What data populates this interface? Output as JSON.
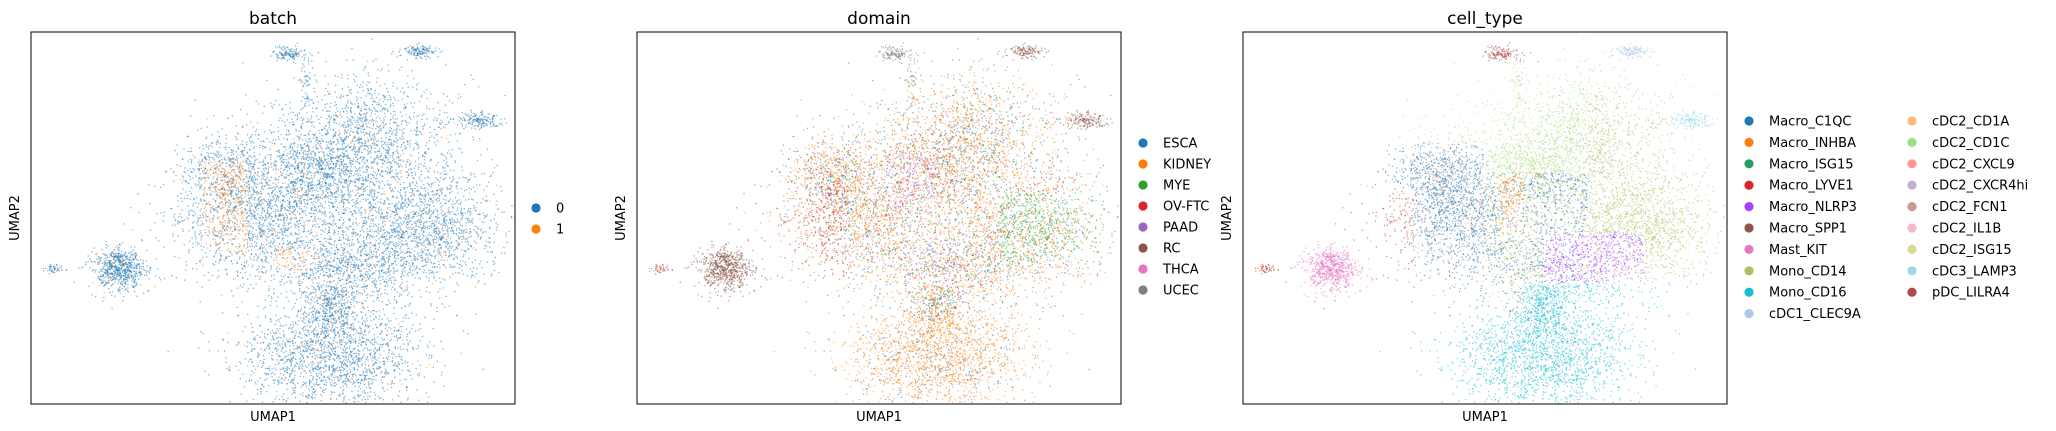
{
  "chart_data": [
    {
      "type": "scatter",
      "title": "batch",
      "xlabel": "UMAP1",
      "ylabel": "UMAP2",
      "legend": "right",
      "grid": false,
      "series": [
        {
          "name": "0",
          "color": "#1f77b4"
        },
        {
          "name": "1",
          "color": "#ff7f0e"
        }
      ]
    },
    {
      "type": "scatter",
      "title": "domain",
      "xlabel": "UMAP1",
      "ylabel": "UMAP2",
      "legend": "right",
      "grid": false,
      "series": [
        {
          "name": "ESCA",
          "color": "#1f77b4"
        },
        {
          "name": "KIDNEY",
          "color": "#ff7f0e"
        },
        {
          "name": "MYE",
          "color": "#2ca02c"
        },
        {
          "name": "OV-FTC",
          "color": "#d62728"
        },
        {
          "name": "PAAD",
          "color": "#9467bd"
        },
        {
          "name": "RC",
          "color": "#8c564b"
        },
        {
          "name": "THCA",
          "color": "#e377c2"
        },
        {
          "name": "UCEC",
          "color": "#7f7f7f"
        }
      ]
    },
    {
      "type": "scatter",
      "title": "cell_type",
      "xlabel": "UMAP1",
      "ylabel": "UMAP2",
      "legend": "right",
      "grid": false,
      "series": [
        {
          "name": "Macro_C1QC",
          "color": "#1f77b4"
        },
        {
          "name": "Macro_INHBA",
          "color": "#ff7f0e"
        },
        {
          "name": "Macro_ISG15",
          "color": "#279e68"
        },
        {
          "name": "Macro_LYVE1",
          "color": "#d62728"
        },
        {
          "name": "Macro_NLRP3",
          "color": "#aa40fc"
        },
        {
          "name": "Macro_SPP1",
          "color": "#8c564b"
        },
        {
          "name": "Mast_KIT",
          "color": "#e377c2"
        },
        {
          "name": "Mono_CD14",
          "color": "#b5bd61"
        },
        {
          "name": "Mono_CD16",
          "color": "#17becf"
        },
        {
          "name": "cDC1_CLEC9A",
          "color": "#aec7e8"
        },
        {
          "name": "cDC2_CD1A",
          "color": "#ffbb78"
        },
        {
          "name": "cDC2_CD1C",
          "color": "#98df8a"
        },
        {
          "name": "cDC2_CXCL9",
          "color": "#ff9896"
        },
        {
          "name": "cDC2_CXCR4hi",
          "color": "#c5b0d5"
        },
        {
          "name": "cDC2_FCN1",
          "color": "#c49c94"
        },
        {
          "name": "cDC2_IL1B",
          "color": "#f7b6d2"
        },
        {
          "name": "cDC2_ISG15",
          "color": "#dbdb8d"
        },
        {
          "name": "cDC3_LAMP3",
          "color": "#9edae5"
        },
        {
          "name": "pDC_LILRA4",
          "color": "#ad494a"
        }
      ]
    }
  ]
}
